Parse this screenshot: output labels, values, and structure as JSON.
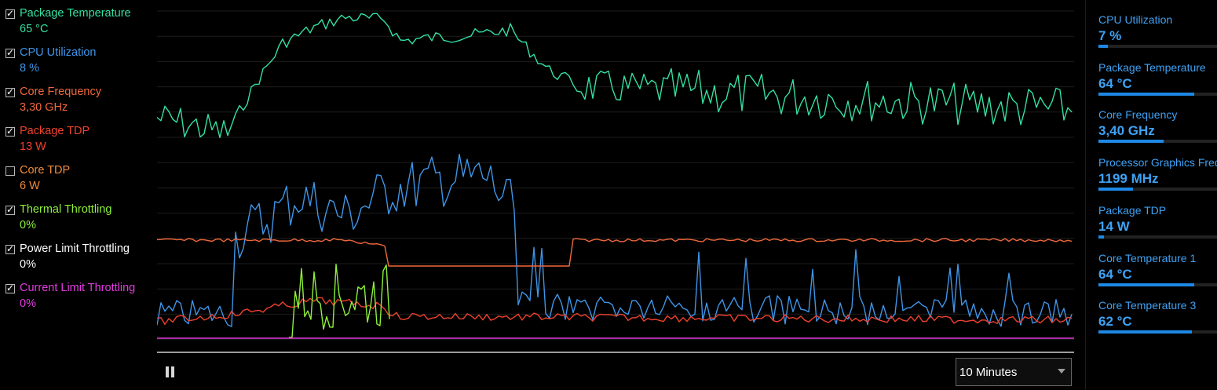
{
  "legend": [
    {
      "label": "Package Temperature",
      "value": "65 °C",
      "checked": true,
      "color": "#34e0a1"
    },
    {
      "label": "CPU Utilization",
      "value": "8 %",
      "checked": true,
      "color": "#3f95e8"
    },
    {
      "label": "Core Frequency",
      "value": "3,30 GHz",
      "checked": true,
      "color": "#f0683c"
    },
    {
      "label": "Package TDP",
      "value": "13 W",
      "checked": true,
      "color": "#f0412e"
    },
    {
      "label": "Core TDP",
      "value": "6 W",
      "checked": false,
      "color": "#f08a3a"
    },
    {
      "label": "Thermal Throttling",
      "value": "0%",
      "checked": true,
      "color": "#8ef03a"
    },
    {
      "label": "Power Limit Throttling",
      "value": "0%",
      "checked": true,
      "color": "#ffffff"
    },
    {
      "label": "Current Limit Throttling",
      "value": "0%",
      "checked": true,
      "color": "#e33be0"
    }
  ],
  "time_range": {
    "selected": "10 Minutes"
  },
  "icons": {
    "pause": "pause-icon",
    "dropdown": "chevron-down-icon",
    "zoom": "search-icon"
  },
  "metrics": [
    {
      "label": "CPU Utilization",
      "value": "7 %",
      "fill": 0.07
    },
    {
      "label": "Package Temperature",
      "value": "64 °C",
      "fill": 0.72
    },
    {
      "label": "Core Frequency",
      "value": "3,40 GHz",
      "fill": 0.49
    },
    {
      "label": "Processor Graphics Freq",
      "value": "1199 MHz",
      "fill": 0.26
    },
    {
      "label": "Package TDP",
      "value": "14 W",
      "fill": 0.04
    },
    {
      "label": "Core Temperature 1",
      "value": "64 °C",
      "fill": 0.72
    },
    {
      "label": "Core Temperature 3",
      "value": "62 °C",
      "fill": 0.7
    }
  ]
}
